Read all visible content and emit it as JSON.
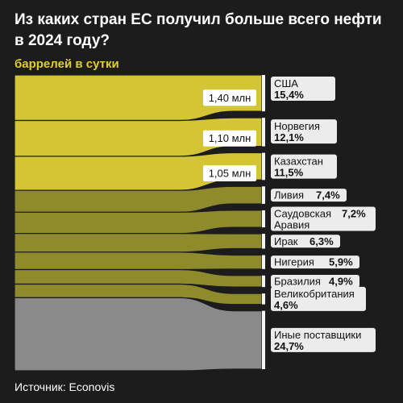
{
  "title": "Из каких стран ЕС получил больше всего нефти в 2024 году?",
  "subtitle": "баррелей в сутки",
  "source": "Источник: Econovis",
  "colors": {
    "background": "#1c1c1c",
    "top3": "#d4c534",
    "mid": "#8f8a2c",
    "other": "#8a8a8a",
    "label_bg": "#ececec",
    "value_bg": "#ffffff"
  },
  "chart_data": {
    "type": "sankey",
    "unit": "баррелей в сутки",
    "series": [
      {
        "name": "США",
        "share": 15.4,
        "share_label": "15,4%",
        "volume_label": "1,40 млн",
        "group": "top3"
      },
      {
        "name": "Норвегия",
        "share": 12.1,
        "share_label": "12,1%",
        "volume_label": "1,10 млн",
        "group": "top3"
      },
      {
        "name": "Казахстан",
        "share": 11.5,
        "share_label": "11,5%",
        "volume_label": "1,05 млн",
        "group": "top3"
      },
      {
        "name": "Ливия",
        "share": 7.4,
        "share_label": "7,4%",
        "group": "mid"
      },
      {
        "name": "Саудовская Аравия",
        "share": 7.2,
        "share_label": "7,2%",
        "group": "mid"
      },
      {
        "name": "Ирак",
        "share": 6.3,
        "share_label": "6,3%",
        "group": "mid"
      },
      {
        "name": "Нигерия",
        "share": 5.9,
        "share_label": "5,9%",
        "group": "mid"
      },
      {
        "name": "Бразилия",
        "share": 4.9,
        "share_label": "4,9%",
        "group": "mid"
      },
      {
        "name": "Великобритания",
        "share": 4.6,
        "share_label": "4,6%",
        "group": "mid"
      },
      {
        "name": "Иные поставщики",
        "share": 24.7,
        "share_label": "24,7%",
        "group": "other"
      }
    ]
  }
}
